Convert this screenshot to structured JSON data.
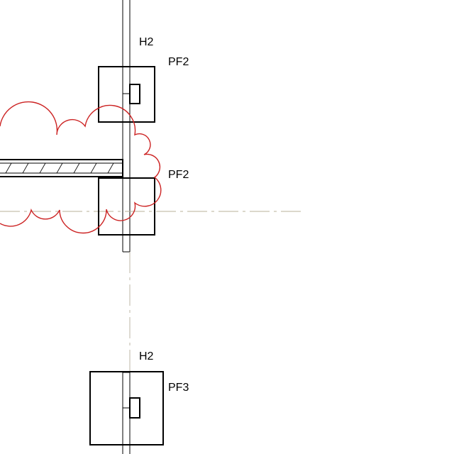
{
  "drawing": {
    "labels": {
      "grid_top": "H2",
      "grid_bottom": "H2",
      "footing_top": "PF2",
      "footing_middle": "PF2",
      "footing_bottom": "PF3"
    },
    "colors": {
      "linework": "#000000",
      "revision_cloud": "#cc2222",
      "centerline": "#b8b09a",
      "background": "#ffffff"
    }
  }
}
